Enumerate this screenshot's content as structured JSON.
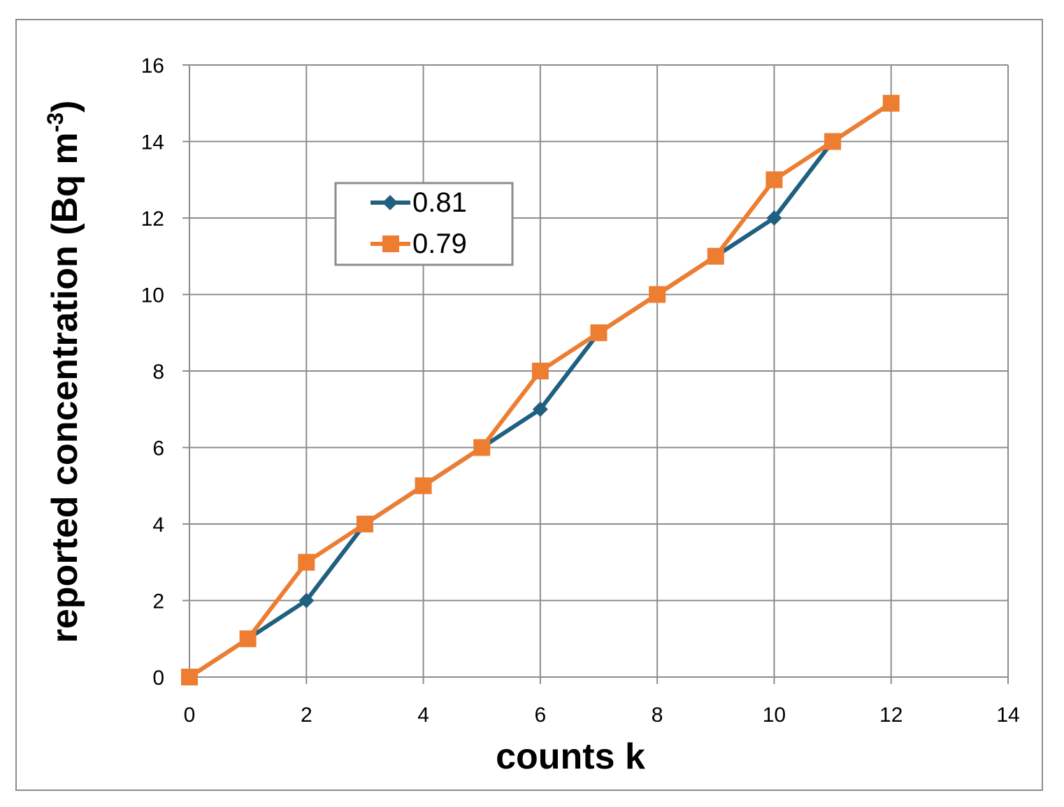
{
  "chart_data": {
    "type": "line",
    "xlabel": "counts k",
    "ylabel_main": "reported concentration (Bq m",
    "ylabel_sup": "-3",
    "ylabel_close": ")",
    "xlim": [
      0,
      14
    ],
    "ylim": [
      0,
      16
    ],
    "xticks": [
      0,
      2,
      4,
      6,
      8,
      10,
      12,
      14
    ],
    "yticks": [
      0,
      2,
      4,
      6,
      8,
      10,
      12,
      14,
      16
    ],
    "grid": true,
    "legend_position": "upper-left",
    "series": [
      {
        "name": "0.81",
        "color": "#1f5f80",
        "marker": "diamond",
        "x": [
          0,
          1,
          2,
          3,
          4,
          5,
          6,
          7,
          8,
          9,
          10,
          11,
          12
        ],
        "y": [
          0,
          1,
          2,
          4,
          5,
          6,
          7,
          9,
          10,
          11,
          12,
          14,
          15
        ]
      },
      {
        "name": "0.79",
        "color": "#ed7d31",
        "marker": "square",
        "x": [
          0,
          1,
          2,
          3,
          4,
          5,
          6,
          7,
          8,
          9,
          10,
          11,
          12
        ],
        "y": [
          0,
          1,
          3,
          4,
          5,
          6,
          8,
          9,
          10,
          11,
          13,
          14,
          15
        ]
      }
    ]
  }
}
